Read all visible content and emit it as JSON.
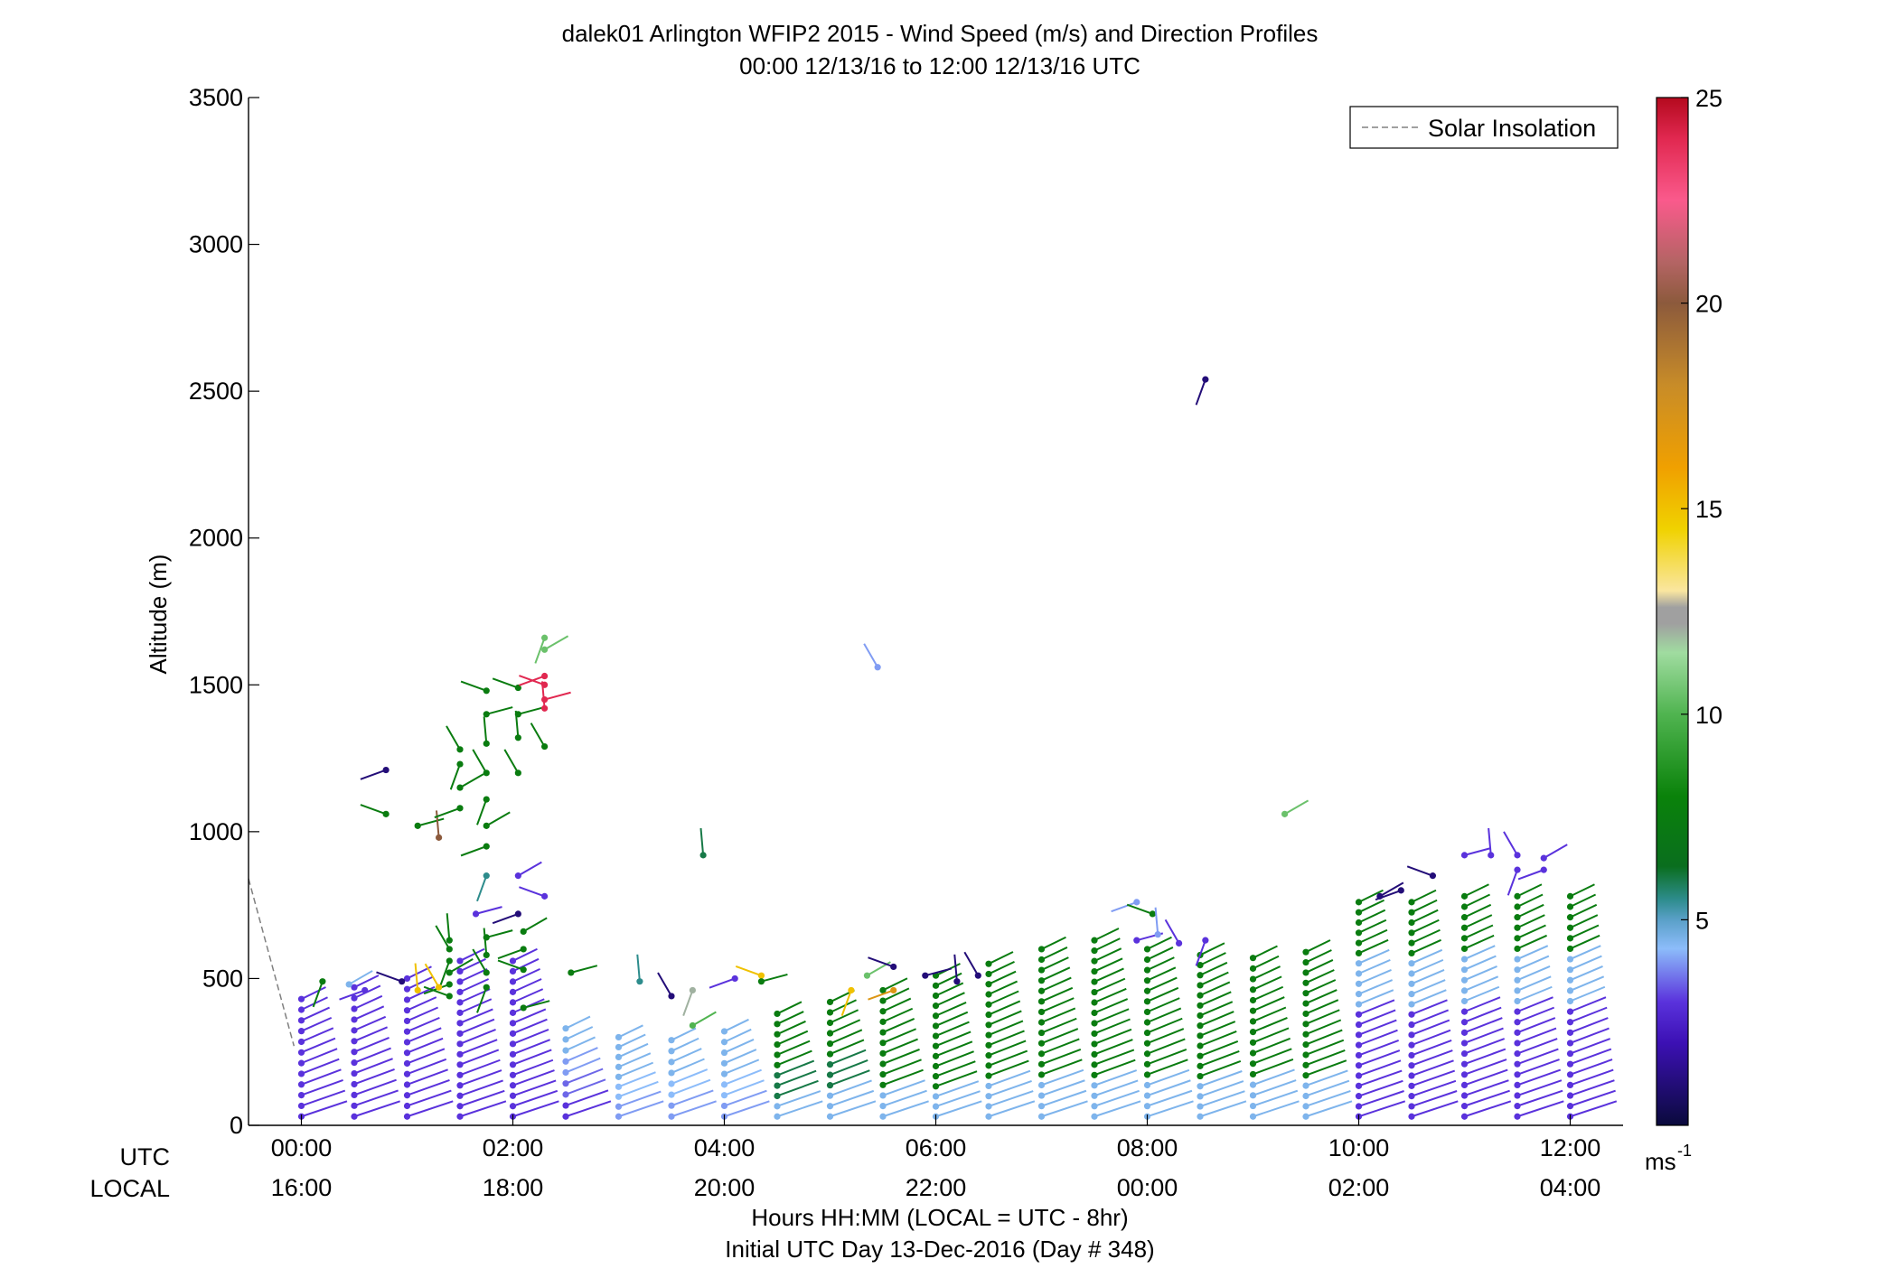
{
  "chart_data": {
    "type": "scatter",
    "title": "dalek01 Arlington WFIP2 2015 - Wind Speed (m/s) and Direction Profiles",
    "subtitle": "00:00 12/13/16 to 12:00 12/13/16  UTC",
    "ylabel": "Altitude (m)",
    "xlabel": "Hours HH:MM  (LOCAL = UTC - 8hr)",
    "xlabel2": "Initial UTC Day 13-Dec-2016 (Day # 348)",
    "x_row_labels": {
      "utc": "UTC",
      "local": "LOCAL"
    },
    "utc_ticks": [
      "00:00",
      "02:00",
      "04:00",
      "06:00",
      "08:00",
      "10:00",
      "12:00"
    ],
    "local_ticks": [
      "16:00",
      "18:00",
      "20:00",
      "22:00",
      "00:00",
      "02:00",
      "04:00"
    ],
    "xlim_hours": [
      -0.5,
      12.5
    ],
    "ylim": [
      0,
      3500
    ],
    "yticks": [
      0,
      500,
      1000,
      1500,
      2000,
      2500,
      3000,
      3500
    ],
    "legend": {
      "label": "Solar Insolation",
      "position": "top-right",
      "style": "dashed",
      "color": "#808080"
    },
    "solar_insolation": {
      "x": [
        -0.5,
        -0.07
      ],
      "y": [
        840,
        270
      ]
    },
    "colorbar": {
      "ticks": [
        5,
        10,
        15,
        20,
        25
      ],
      "range": [
        0,
        25
      ],
      "unit": "ms",
      "unit_exponent": "-1",
      "stops": [
        {
          "v": 0,
          "c": "#0a0a3c"
        },
        {
          "v": 2,
          "c": "#3c10b4"
        },
        {
          "v": 3,
          "c": "#5a32dc"
        },
        {
          "v": 4.3,
          "c": "#8cbcfa"
        },
        {
          "v": 5,
          "c": "#5aa0c8"
        },
        {
          "v": 5.5,
          "c": "#2d8c8c"
        },
        {
          "v": 6.3,
          "c": "#0a6e1e"
        },
        {
          "v": 8,
          "c": "#0a820a"
        },
        {
          "v": 10,
          "c": "#50b450"
        },
        {
          "v": 11.5,
          "c": "#a0dca0"
        },
        {
          "v": 12.2,
          "c": "#a0a0a0"
        },
        {
          "v": 12.6,
          "c": "#a0a0a0"
        },
        {
          "v": 13,
          "c": "#fae6a0"
        },
        {
          "v": 14.5,
          "c": "#f0d200"
        },
        {
          "v": 16,
          "c": "#f0a000"
        },
        {
          "v": 18,
          "c": "#c88c28"
        },
        {
          "v": 20,
          "c": "#8c5a3c"
        },
        {
          "v": 21,
          "c": "#b46464"
        },
        {
          "v": 22.5,
          "c": "#fa5a8c"
        },
        {
          "v": 24,
          "c": "#e12850"
        },
        {
          "v": 25,
          "c": "#b40a1e"
        }
      ]
    },
    "profiles": [
      {
        "hour": 0.0,
        "top": 430,
        "speeds": [
          3,
          3,
          3,
          3
        ]
      },
      {
        "hour": 0.5,
        "top": 470,
        "speeds": [
          3,
          3,
          3,
          3
        ]
      },
      {
        "hour": 1.0,
        "top": 500,
        "speeds": [
          3,
          3,
          3,
          3
        ]
      },
      {
        "hour": 1.5,
        "top": 560,
        "speeds": [
          3,
          3,
          3,
          3
        ]
      },
      {
        "hour": 2.0,
        "top": 560,
        "speeds": [
          3,
          3,
          3,
          3
        ]
      },
      {
        "hour": 2.5,
        "top": 330,
        "speeds": [
          4.5,
          4,
          3.5,
          3
        ]
      },
      {
        "hour": 3.0,
        "top": 300,
        "speeds": [
          4.5,
          4.5,
          4.3,
          4
        ]
      },
      {
        "hour": 3.5,
        "top": 290,
        "speeds": [
          4.5,
          4.5,
          4.3,
          4
        ]
      },
      {
        "hour": 4.0,
        "top": 320,
        "speeds": [
          4.5,
          4.5,
          4.3,
          4
        ]
      },
      {
        "hour": 4.5,
        "top": 380,
        "speeds": [
          7.5,
          7.5,
          6,
          4.5
        ]
      },
      {
        "hour": 5.0,
        "top": 420,
        "speeds": [
          7.5,
          7.5,
          6,
          4.5
        ]
      },
      {
        "hour": 5.5,
        "top": 460,
        "speeds": [
          7.5,
          7.5,
          7.5,
          4.5
        ]
      },
      {
        "hour": 6.0,
        "top": 510,
        "speeds": [
          7.5,
          7.5,
          7.5,
          4.5
        ]
      },
      {
        "hour": 6.5,
        "top": 550,
        "speeds": [
          7.5,
          7.5,
          7.5,
          4.5
        ]
      },
      {
        "hour": 7.0,
        "top": 600,
        "speeds": [
          7.5,
          7.5,
          7.5,
          4.5
        ]
      },
      {
        "hour": 7.5,
        "top": 630,
        "speeds": [
          7.5,
          7.5,
          7.5,
          4.5
        ]
      },
      {
        "hour": 8.0,
        "top": 600,
        "speeds": [
          7.5,
          7.5,
          7.5,
          4.5
        ]
      },
      {
        "hour": 8.5,
        "top": 580,
        "speeds": [
          7.5,
          7.5,
          7.5,
          4.5
        ]
      },
      {
        "hour": 9.0,
        "top": 570,
        "speeds": [
          7.5,
          7.5,
          7.5,
          4.5
        ]
      },
      {
        "hour": 9.5,
        "top": 590,
        "speeds": [
          7.5,
          7.5,
          7.5,
          4.5
        ]
      },
      {
        "hour": 10.0,
        "top": 760,
        "speeds": [
          7.5,
          4.5,
          3,
          3
        ]
      },
      {
        "hour": 10.5,
        "top": 760,
        "speeds": [
          7.5,
          4.5,
          3,
          3
        ]
      },
      {
        "hour": 11.0,
        "top": 780,
        "speeds": [
          7.5,
          4.5,
          3,
          3
        ]
      },
      {
        "hour": 11.5,
        "top": 780,
        "speeds": [
          7.5,
          4.5,
          3,
          3
        ]
      },
      {
        "hour": 12.0,
        "top": 780,
        "speeds": [
          7.5,
          4.5,
          3,
          3
        ]
      }
    ],
    "scattered_points": [
      {
        "hour": 0.8,
        "alt": 1210,
        "speed": 1
      },
      {
        "hour": 0.8,
        "alt": 1060,
        "speed": 7.5
      },
      {
        "hour": 1.1,
        "alt": 1020,
        "speed": 7.5
      },
      {
        "hour": 1.3,
        "alt": 980,
        "speed": 20
      },
      {
        "hour": 1.5,
        "alt": 1280,
        "speed": 7.5
      },
      {
        "hour": 1.5,
        "alt": 1230,
        "speed": 7.5
      },
      {
        "hour": 1.5,
        "alt": 1150,
        "speed": 7.5
      },
      {
        "hour": 1.5,
        "alt": 1080,
        "speed": 7.5
      },
      {
        "hour": 1.75,
        "alt": 1480,
        "speed": 7.5
      },
      {
        "hour": 1.75,
        "alt": 1400,
        "speed": 7.5
      },
      {
        "hour": 1.75,
        "alt": 1300,
        "speed": 7.5
      },
      {
        "hour": 1.75,
        "alt": 1200,
        "speed": 7.5
      },
      {
        "hour": 1.75,
        "alt": 1110,
        "speed": 7.5
      },
      {
        "hour": 1.75,
        "alt": 1020,
        "speed": 7.5
      },
      {
        "hour": 1.75,
        "alt": 950,
        "speed": 7.5
      },
      {
        "hour": 2.05,
        "alt": 1490,
        "speed": 7.5
      },
      {
        "hour": 2.05,
        "alt": 1400,
        "speed": 7.5
      },
      {
        "hour": 2.05,
        "alt": 1320,
        "speed": 7.5
      },
      {
        "hour": 2.05,
        "alt": 1200,
        "speed": 7.5
      },
      {
        "hour": 2.3,
        "alt": 1660,
        "speed": 10.5
      },
      {
        "hour": 2.3,
        "alt": 1620,
        "speed": 10.5
      },
      {
        "hour": 2.3,
        "alt": 1530,
        "speed": 24
      },
      {
        "hour": 2.3,
        "alt": 1500,
        "speed": 24
      },
      {
        "hour": 2.3,
        "alt": 1450,
        "speed": 24
      },
      {
        "hour": 2.3,
        "alt": 1420,
        "speed": 24
      },
      {
        "hour": 2.3,
        "alt": 1290,
        "speed": 7.5
      },
      {
        "hour": 1.75,
        "alt": 850,
        "speed": 5.5
      },
      {
        "hour": 2.05,
        "alt": 850,
        "speed": 3
      },
      {
        "hour": 2.05,
        "alt": 720,
        "speed": 1
      },
      {
        "hour": 2.3,
        "alt": 780,
        "speed": 3
      },
      {
        "hour": 1.65,
        "alt": 720,
        "speed": 3
      },
      {
        "hour": 1.4,
        "alt": 630,
        "speed": 7.5
      },
      {
        "hour": 1.4,
        "alt": 600,
        "speed": 7.5
      },
      {
        "hour": 1.4,
        "alt": 560,
        "speed": 7.5
      },
      {
        "hour": 1.4,
        "alt": 520,
        "speed": 7.5
      },
      {
        "hour": 1.4,
        "alt": 480,
        "speed": 7.5
      },
      {
        "hour": 1.4,
        "alt": 440,
        "speed": 7.5
      },
      {
        "hour": 1.75,
        "alt": 640,
        "speed": 7.5
      },
      {
        "hour": 1.75,
        "alt": 580,
        "speed": 7.5
      },
      {
        "hour": 1.75,
        "alt": 520,
        "speed": 7.5
      },
      {
        "hour": 1.75,
        "alt": 470,
        "speed": 7.5
      },
      {
        "hour": 2.1,
        "alt": 660,
        "speed": 7.5
      },
      {
        "hour": 2.1,
        "alt": 600,
        "speed": 7.5
      },
      {
        "hour": 2.1,
        "alt": 530,
        "speed": 7.5
      },
      {
        "hour": 2.1,
        "alt": 400,
        "speed": 7.5
      },
      {
        "hour": 1.1,
        "alt": 460,
        "speed": 15
      },
      {
        "hour": 1.3,
        "alt": 470,
        "speed": 15
      },
      {
        "hour": 0.2,
        "alt": 490,
        "speed": 7.5
      },
      {
        "hour": 0.45,
        "alt": 480,
        "speed": 4.5
      },
      {
        "hour": 0.6,
        "alt": 460,
        "speed": 3
      },
      {
        "hour": 0.95,
        "alt": 490,
        "speed": 1
      },
      {
        "hour": 2.55,
        "alt": 520,
        "speed": 7.5
      },
      {
        "hour": 3.2,
        "alt": 490,
        "speed": 5.5
      },
      {
        "hour": 3.5,
        "alt": 440,
        "speed": 1
      },
      {
        "hour": 3.7,
        "alt": 460,
        "speed": 12
      },
      {
        "hour": 3.7,
        "alt": 340,
        "speed": 10
      },
      {
        "hour": 4.1,
        "alt": 500,
        "speed": 3
      },
      {
        "hour": 4.35,
        "alt": 510,
        "speed": 15
      },
      {
        "hour": 4.35,
        "alt": 490,
        "speed": 7.5
      },
      {
        "hour": 3.8,
        "alt": 920,
        "speed": 6
      },
      {
        "hour": 5.45,
        "alt": 1560,
        "speed": 4
      },
      {
        "hour": 5.2,
        "alt": 460,
        "speed": 15
      },
      {
        "hour": 5.35,
        "alt": 510,
        "speed": 10.5
      },
      {
        "hour": 5.6,
        "alt": 460,
        "speed": 17
      },
      {
        "hour": 5.6,
        "alt": 540,
        "speed": 1
      },
      {
        "hour": 5.9,
        "alt": 510,
        "speed": 1
      },
      {
        "hour": 6.2,
        "alt": 490,
        "speed": 1
      },
      {
        "hour": 6.4,
        "alt": 510,
        "speed": 1
      },
      {
        "hour": 8.55,
        "alt": 2540,
        "speed": 1
      },
      {
        "hour": 9.3,
        "alt": 1060,
        "speed": 10.5
      },
      {
        "hour": 7.9,
        "alt": 760,
        "speed": 4
      },
      {
        "hour": 8.05,
        "alt": 720,
        "speed": 7.5
      },
      {
        "hour": 7.9,
        "alt": 630,
        "speed": 3
      },
      {
        "hour": 8.1,
        "alt": 650,
        "speed": 4
      },
      {
        "hour": 8.3,
        "alt": 620,
        "speed": 3
      },
      {
        "hour": 8.55,
        "alt": 630,
        "speed": 3
      },
      {
        "hour": 10.2,
        "alt": 780,
        "speed": 1
      },
      {
        "hour": 10.4,
        "alt": 800,
        "speed": 1
      },
      {
        "hour": 10.7,
        "alt": 850,
        "speed": 1
      },
      {
        "hour": 11.0,
        "alt": 920,
        "speed": 3
      },
      {
        "hour": 11.25,
        "alt": 920,
        "speed": 3
      },
      {
        "hour": 11.5,
        "alt": 920,
        "speed": 3
      },
      {
        "hour": 11.5,
        "alt": 870,
        "speed": 3
      },
      {
        "hour": 11.75,
        "alt": 910,
        "speed": 3
      },
      {
        "hour": 11.75,
        "alt": 870,
        "speed": 3
      }
    ]
  }
}
